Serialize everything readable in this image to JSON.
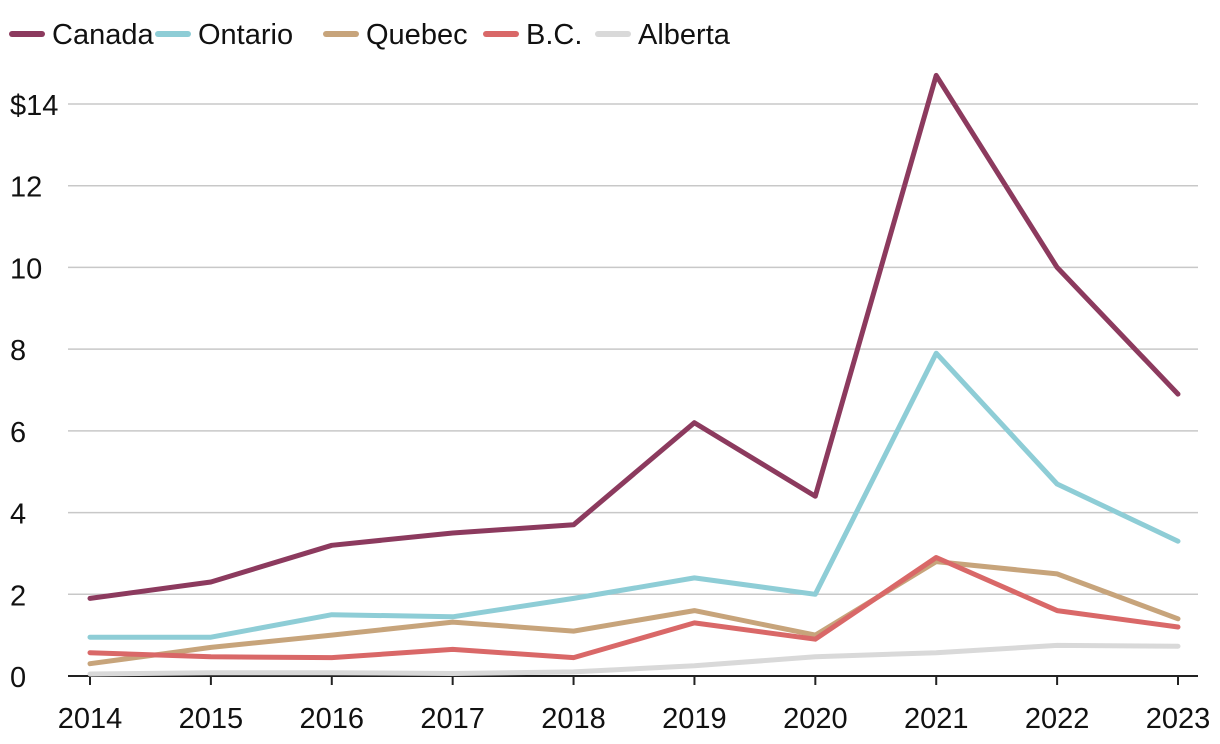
{
  "chart_data": {
    "type": "line",
    "title": "",
    "xlabel": "",
    "ylabel": "",
    "x": [
      "2014",
      "2015",
      "2016",
      "2017",
      "2018",
      "2019",
      "2020",
      "2021",
      "2022",
      "2023"
    ],
    "ylim": [
      0,
      14
    ],
    "yticks": [
      0,
      2,
      4,
      6,
      8,
      10,
      12,
      14
    ],
    "ytick_labels": [
      "0",
      "2",
      "4",
      "6",
      "8",
      "10",
      "12",
      "$14"
    ],
    "grid": true,
    "legend_position": "top-left",
    "series": [
      {
        "name": "Alberta",
        "color": "#d9d9d9",
        "values": [
          0.05,
          0.08,
          0.08,
          0.06,
          0.1,
          0.25,
          0.47,
          0.57,
          0.75,
          0.73
        ]
      },
      {
        "name": "Ontario",
        "color": "#8ecdd6",
        "values": [
          0.95,
          0.95,
          1.5,
          1.45,
          1.9,
          2.4,
          2.0,
          7.9,
          4.7,
          3.3
        ]
      },
      {
        "name": "Quebec",
        "color": "#c7a47b",
        "values": [
          0.3,
          0.7,
          1.0,
          1.32,
          1.1,
          1.6,
          1.0,
          2.8,
          2.5,
          1.4
        ]
      },
      {
        "name": "B.C.",
        "color": "#d96868",
        "values": [
          0.57,
          0.47,
          0.45,
          0.65,
          0.45,
          1.3,
          0.9,
          2.9,
          1.6,
          1.2
        ]
      },
      {
        "name": "Canada",
        "color": "#8c3a5e",
        "values": [
          1.9,
          2.3,
          3.2,
          3.5,
          3.7,
          6.2,
          4.4,
          14.7,
          10.0,
          6.9
        ]
      }
    ],
    "legend_order": [
      "Canada",
      "Ontario",
      "Quebec",
      "B.C.",
      "Alberta"
    ]
  }
}
